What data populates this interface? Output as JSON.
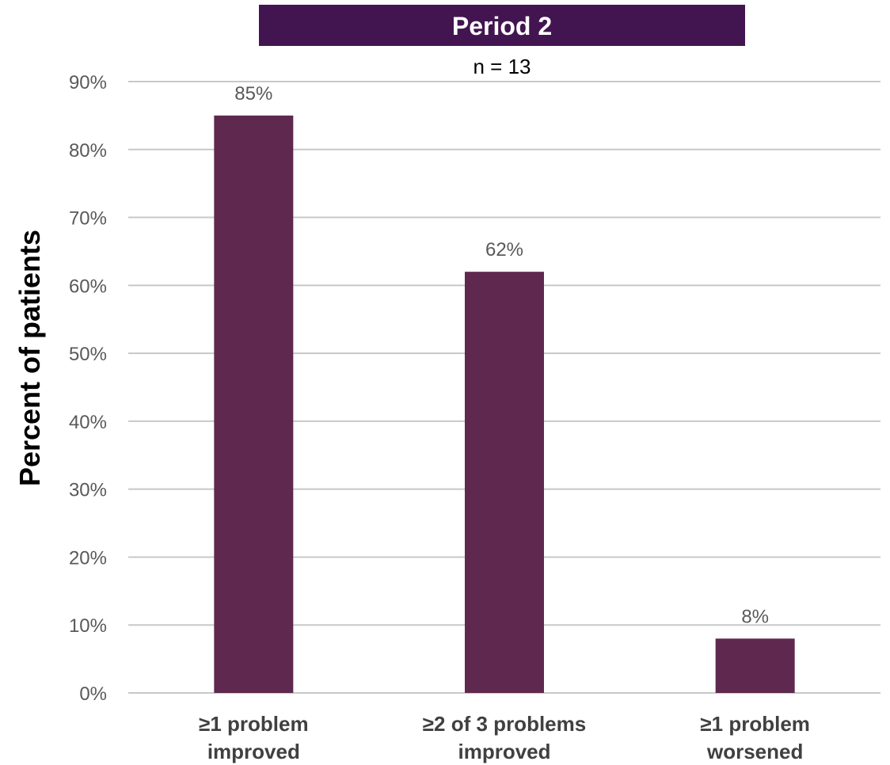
{
  "chart_data": {
    "type": "bar",
    "title": "Period 2",
    "subtitle": "n = 13",
    "categories": [
      "≥1 problem improved",
      "≥2 of 3 problems improved",
      "≥1 problem worsened"
    ],
    "category_lines": [
      [
        "≥1 problem",
        "improved"
      ],
      [
        "≥2 of 3 problems",
        "improved"
      ],
      [
        "≥1 problem",
        "worsened"
      ]
    ],
    "values": [
      85,
      62,
      8
    ],
    "data_labels": [
      "85%",
      "62%",
      "8%"
    ],
    "ylabel": "Percent of patients",
    "xlabel": "",
    "ylim": [
      0,
      90
    ],
    "yticks": [
      0,
      10,
      20,
      30,
      40,
      50,
      60,
      70,
      80,
      90
    ],
    "ytick_labels": [
      "0%",
      "10%",
      "20%",
      "30%",
      "40%",
      "50%",
      "60%",
      "70%",
      "80%",
      "90%"
    ],
    "grid": true,
    "colors": {
      "bar": "#5f284f",
      "title_bg": "#421551",
      "grid": "#c8c8c8"
    }
  }
}
